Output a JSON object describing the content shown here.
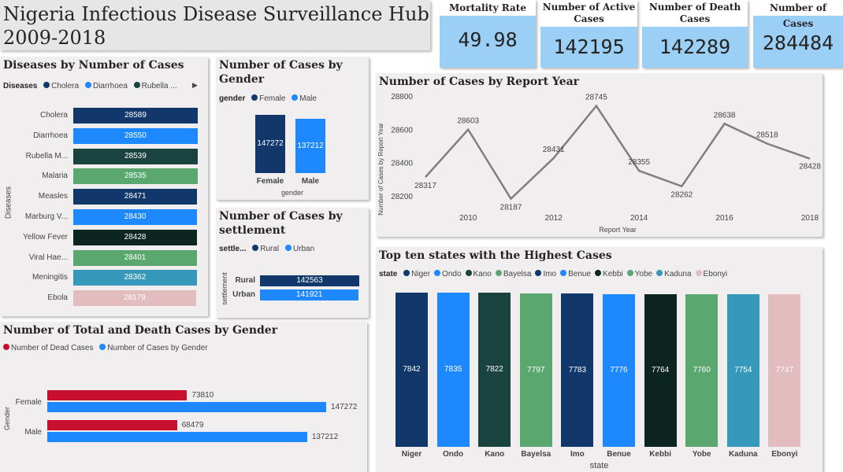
{
  "header": {
    "title_line1": "Nigeria Infectious Disease Surveillance Hub",
    "title_line2": "2009-2018"
  },
  "kpis": [
    {
      "label": "Mortality Rate",
      "value": "49.98"
    },
    {
      "label": "Number of Active Cases",
      "value": "142195"
    },
    {
      "label": "Number of Death Cases",
      "value": "142289"
    },
    {
      "label": "Number of Cases",
      "value": "284484"
    }
  ],
  "legend_arrow": "▶",
  "chart_data": [
    {
      "id": "diseases",
      "type": "bar",
      "orientation": "horizontal",
      "title": "Diseases by Number of Cases",
      "legend_title": "Diseases",
      "legend": [
        "Cholera",
        "Diarrhoea",
        "Rubella ..."
      ],
      "ylabel": "Diseases",
      "categories": [
        "Cholera",
        "Diarrhoea",
        "Rubella M...",
        "Malaria",
        "Measles",
        "Marburg V...",
        "Yellow Fever",
        "Viral Hae...",
        "Meningitis",
        "Ebola"
      ],
      "values": [
        28589,
        28550,
        28539,
        28535,
        28471,
        28430,
        28428,
        28401,
        28362,
        28179
      ],
      "colors": [
        "#12386b",
        "#1e88ff",
        "#1a4340",
        "#5aa870",
        "#12386b",
        "#1e88ff",
        "#0d2520",
        "#5aa870",
        "#3699bb",
        "#e3bcc0"
      ]
    },
    {
      "id": "gender",
      "type": "bar",
      "title": "Number of Cases by Gender",
      "legend_title": "gender",
      "legend": [
        "Female",
        "Male"
      ],
      "xlabel": "gender",
      "categories": [
        "Female",
        "Male"
      ],
      "values": [
        147272,
        137212
      ],
      "colors": [
        "#12386b",
        "#1e88ff"
      ]
    },
    {
      "id": "settlement",
      "type": "bar",
      "orientation": "horizontal",
      "title": "Number of Cases by settlement",
      "legend_title": "settle...",
      "legend": [
        "Rural",
        "Urban"
      ],
      "ylabel": "settlement",
      "categories": [
        "Rural",
        "Urban"
      ],
      "values": [
        142563,
        141921
      ],
      "colors": [
        "#12386b",
        "#1e88ff"
      ]
    },
    {
      "id": "report-year",
      "type": "line",
      "title": "Number of Cases by Report Year",
      "xlabel": "Report Year",
      "ylabel": "Number of Cases by Report Year",
      "x": [
        2009,
        2010,
        2011,
        2012,
        2013,
        2014,
        2015,
        2016,
        2017,
        2018
      ],
      "values": [
        28317,
        28603,
        28187,
        28431,
        28745,
        28355,
        28262,
        28638,
        28518,
        28428
      ],
      "ylim": [
        28100,
        28800
      ],
      "yticks": [
        28200,
        28400,
        28600,
        28800
      ],
      "xticks": [
        2010,
        2012,
        2014,
        2016,
        2018
      ],
      "line_color": "#7f7f7f"
    },
    {
      "id": "top-states",
      "type": "bar",
      "title": "Top ten states with the Highest Cases",
      "legend_title": "state",
      "xlabel": "state",
      "categories": [
        "Niger",
        "Ondo",
        "Kano",
        "Bayelsa",
        "Imo",
        "Benue",
        "Kebbi",
        "Yobe",
        "Kaduna",
        "Ebonyi"
      ],
      "values": [
        7842,
        7835,
        7822,
        7797,
        7783,
        7776,
        7764,
        7760,
        7754,
        7747
      ],
      "colors": [
        "#12386b",
        "#1e88ff",
        "#1a4340",
        "#5aa870",
        "#12386b",
        "#1e88ff",
        "#0d2520",
        "#5aa870",
        "#3699bb",
        "#e3bcc0"
      ]
    },
    {
      "id": "total-death-gender",
      "type": "bar",
      "orientation": "horizontal",
      "title": "Number of Total and Death Cases by Gender",
      "ylabel": "Gender",
      "categories": [
        "Female",
        "Male"
      ],
      "series": [
        {
          "name": "Number of Dead Cases",
          "values": [
            73810,
            68479
          ],
          "color": "#c8102e"
        },
        {
          "name": "Number of Cases by Gender",
          "values": [
            147272,
            137212
          ],
          "color": "#1e88ff"
        }
      ]
    }
  ]
}
